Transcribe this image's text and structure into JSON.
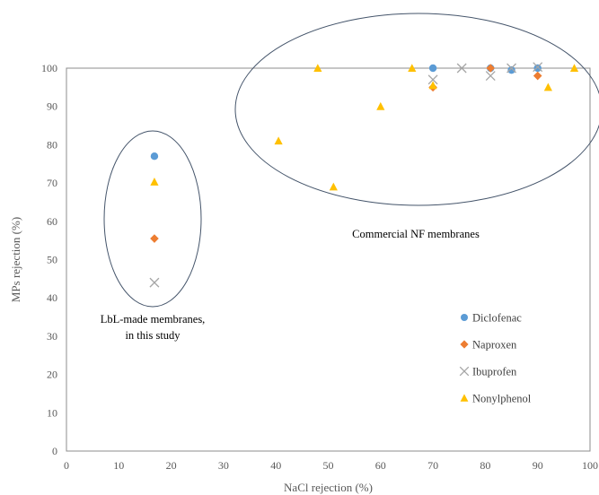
{
  "chart_data": {
    "type": "scatter",
    "title": "",
    "xlabel": "NaCl rejection (%)",
    "ylabel": "MPs rejection (%)",
    "xlim": [
      0,
      100
    ],
    "ylim": [
      0,
      100
    ],
    "xticks": [
      "0",
      "10",
      "20",
      "30",
      "40",
      "50",
      "60",
      "70",
      "80",
      "90",
      "100"
    ],
    "yticks": [
      "0",
      "10",
      "20",
      "30",
      "40",
      "50",
      "60",
      "70",
      "80",
      "90",
      "100"
    ],
    "grid": false,
    "legend_position": "right",
    "series": [
      {
        "name": "Diclofenac",
        "marker": "circle",
        "color": "#5B9BD5",
        "points": [
          [
            16.8,
            77
          ],
          [
            70,
            100
          ],
          [
            81,
            100
          ],
          [
            85,
            99.5
          ],
          [
            90,
            100
          ]
        ]
      },
      {
        "name": "Naproxen",
        "marker": "diamond",
        "color": "#ED7D31",
        "points": [
          [
            16.8,
            55.5
          ],
          [
            70,
            95
          ],
          [
            81,
            100
          ],
          [
            90,
            98
          ]
        ]
      },
      {
        "name": "Ibuprofen",
        "marker": "x",
        "color": "#A5A5A5",
        "points": [
          [
            16.8,
            44
          ],
          [
            70,
            97
          ],
          [
            75.5,
            100
          ],
          [
            81,
            98
          ],
          [
            85,
            100
          ],
          [
            90,
            100.3
          ]
        ]
      },
      {
        "name": "Nonylphenol",
        "marker": "triangle",
        "color": "#FFC000",
        "points": [
          [
            16.8,
            70.3
          ],
          [
            40.5,
            81
          ],
          [
            48,
            100
          ],
          [
            51,
            69
          ],
          [
            60,
            90
          ],
          [
            66,
            100
          ],
          [
            70,
            95.5
          ],
          [
            92,
            95
          ],
          [
            97,
            100
          ]
        ]
      }
    ],
    "annotations": [
      {
        "lines": [
          "LbL-made membranes,",
          "in this study"
        ]
      },
      {
        "lines": [
          "Commercial NF membranes"
        ]
      }
    ]
  }
}
